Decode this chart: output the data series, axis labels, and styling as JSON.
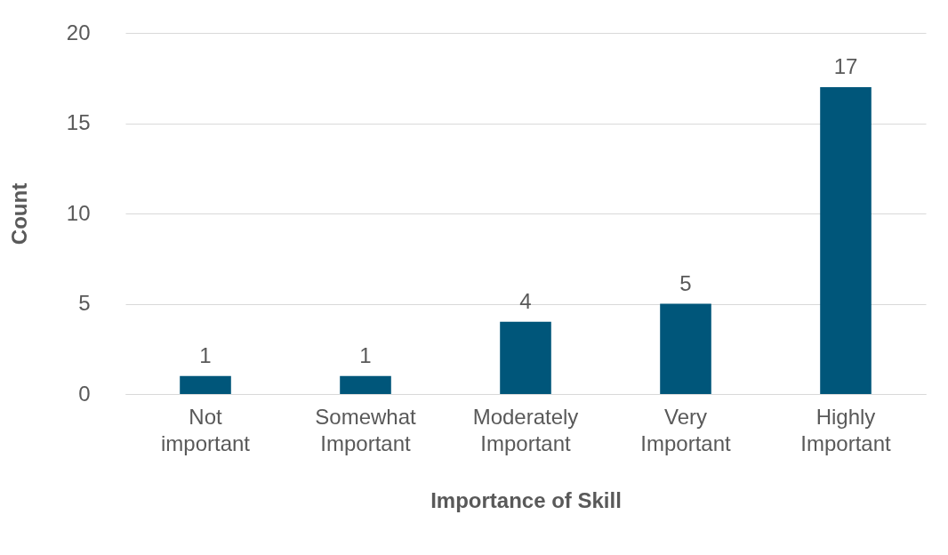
{
  "chart_data": {
    "type": "bar",
    "categories": [
      "Not important",
      "Somewhat Important",
      "Moderately Important",
      "Very Important",
      "Highly Important"
    ],
    "values": [
      1,
      1,
      4,
      5,
      17
    ],
    "color": "#00567a",
    "xlabel": "Importance of Skill",
    "ylabel": "Count",
    "ylim": [
      0,
      20
    ],
    "yticks": [
      0,
      5,
      10,
      15,
      20
    ],
    "grid": "y",
    "data_labels": true
  }
}
